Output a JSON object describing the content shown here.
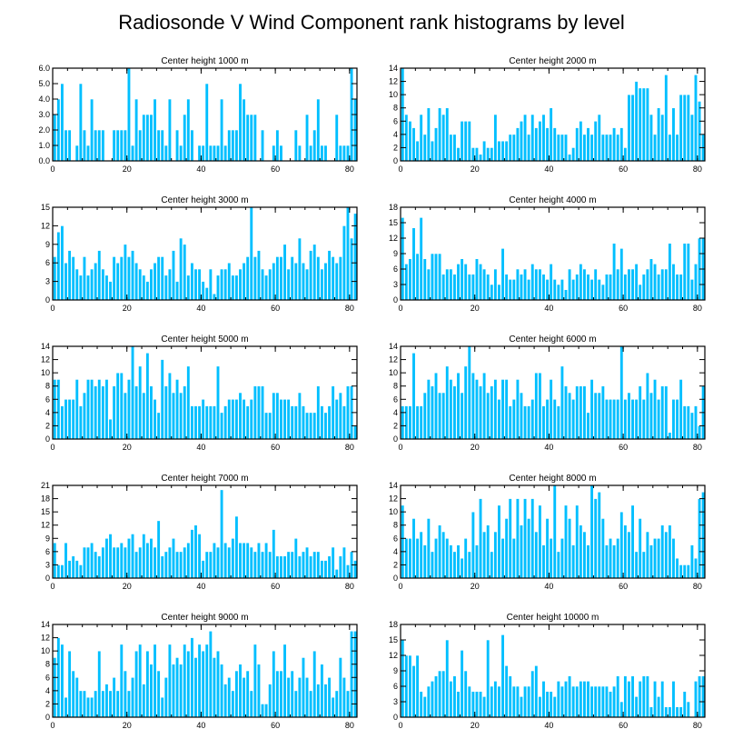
{
  "title": "Radiosonde V Wind Component rank histograms by level",
  "colors": {
    "bar": "#00bfff",
    "axis": "#000000"
  },
  "chart_data": [
    {
      "type": "bar",
      "title": "Center height 1000 m",
      "xlim": [
        0,
        82
      ],
      "ylim": [
        0,
        6
      ],
      "xticks": [
        0,
        20,
        40,
        60,
        80
      ],
      "yticks": [
        0,
        1,
        2,
        3,
        4,
        5,
        6
      ],
      "ytick_labels": [
        "0.0",
        "1.0",
        "2.0",
        "3.0",
        "4.0",
        "5.0",
        "6.0"
      ],
      "values": [
        3,
        4,
        5,
        2,
        2,
        0,
        1,
        5,
        2,
        1,
        4,
        2,
        2,
        2,
        0,
        0,
        2,
        2,
        2,
        2,
        6,
        1,
        4,
        2,
        3,
        3,
        3,
        4,
        2,
        2,
        1,
        4,
        0,
        2,
        1,
        3,
        4,
        2,
        0,
        1,
        1,
        5,
        1,
        1,
        1,
        4,
        1,
        2,
        2,
        2,
        5,
        4,
        3,
        3,
        3,
        0,
        2,
        0,
        0,
        1,
        2,
        1,
        0,
        0,
        0,
        2,
        1,
        0,
        3,
        1,
        2,
        4,
        1,
        1,
        0,
        0,
        3,
        1,
        1,
        1,
        6,
        4
      ]
    },
    {
      "type": "bar",
      "title": "Center height 2000 m",
      "xlim": [
        0,
        82
      ],
      "ylim": [
        0,
        14
      ],
      "xticks": [
        0,
        20,
        40,
        60,
        80
      ],
      "yticks": [
        0,
        2,
        4,
        6,
        8,
        10,
        12,
        14
      ],
      "ytick_labels": [
        "0",
        "2",
        "4",
        "6",
        "8",
        "10",
        "12",
        "14"
      ],
      "values": [
        14,
        7,
        6,
        5,
        3,
        7,
        4,
        8,
        3,
        5,
        8,
        7,
        8,
        4,
        4,
        2,
        6,
        6,
        6,
        2,
        2,
        1,
        3,
        2,
        2,
        7,
        3,
        3,
        3,
        4,
        4,
        5,
        6,
        7,
        4,
        7,
        5,
        6,
        7,
        5,
        8,
        5,
        4,
        4,
        4,
        1,
        2,
        5,
        6,
        4,
        5,
        4,
        6,
        7,
        4,
        4,
        4,
        5,
        4,
        5,
        2,
        10,
        10,
        12,
        11,
        11,
        11,
        7,
        4,
        8,
        7,
        13,
        4,
        8,
        4,
        10,
        10,
        10,
        7,
        13,
        9,
        4
      ]
    },
    {
      "type": "bar",
      "title": "Center height 3000 m",
      "xlim": [
        0,
        82
      ],
      "ylim": [
        0,
        15
      ],
      "xticks": [
        0,
        20,
        40,
        60,
        80
      ],
      "yticks": [
        0,
        3,
        6,
        9,
        12,
        15
      ],
      "ytick_labels": [
        "0",
        "3",
        "6",
        "9",
        "12",
        "15"
      ],
      "values": [
        7,
        11,
        12,
        6,
        8,
        7,
        5,
        4,
        7,
        4,
        5,
        6,
        8,
        5,
        4,
        3,
        7,
        6,
        7,
        9,
        7,
        8,
        6,
        5,
        4,
        3,
        5,
        6,
        7,
        7,
        4,
        5,
        8,
        3,
        10,
        9,
        4,
        6,
        5,
        5,
        3,
        2,
        5,
        1,
        4,
        5,
        5,
        6,
        4,
        4,
        5,
        6,
        7,
        15,
        7,
        8,
        5,
        4,
        5,
        6,
        7,
        7,
        9,
        5,
        7,
        6,
        10,
        6,
        5,
        8,
        9,
        7,
        5,
        6,
        8,
        7,
        6,
        7,
        12,
        15,
        10,
        14
      ]
    },
    {
      "type": "bar",
      "title": "Center height 4000 m",
      "xlim": [
        0,
        82
      ],
      "ylim": [
        0,
        18
      ],
      "xticks": [
        0,
        20,
        40,
        60,
        80
      ],
      "yticks": [
        0,
        3,
        6,
        9,
        12,
        15,
        18
      ],
      "ytick_labels": [
        "0",
        "3",
        "6",
        "9",
        "12",
        "15",
        "18"
      ],
      "values": [
        16,
        7,
        8,
        14,
        9,
        16,
        8,
        6,
        9,
        9,
        9,
        5,
        6,
        6,
        5,
        7,
        8,
        7,
        5,
        5,
        8,
        7,
        6,
        5,
        3,
        6,
        3,
        10,
        5,
        4,
        4,
        6,
        5,
        6,
        4,
        7,
        6,
        6,
        5,
        4,
        7,
        4,
        3,
        4,
        2,
        6,
        4,
        5,
        7,
        6,
        5,
        4,
        6,
        4,
        3,
        5,
        5,
        11,
        6,
        10,
        5,
        6,
        6,
        7,
        3,
        5,
        6,
        8,
        7,
        5,
        6,
        6,
        11,
        7,
        5,
        5,
        11,
        11,
        4,
        7,
        12,
        12
      ]
    },
    {
      "type": "bar",
      "title": "Center height 5000 m",
      "xlim": [
        0,
        82
      ],
      "ylim": [
        0,
        14
      ],
      "xticks": [
        0,
        20,
        40,
        60,
        80
      ],
      "yticks": [
        0,
        2,
        4,
        6,
        8,
        10,
        12,
        14
      ],
      "ytick_labels": [
        "0",
        "2",
        "4",
        "6",
        "8",
        "10",
        "12",
        "14"
      ],
      "values": [
        9,
        9,
        5,
        6,
        6,
        6,
        9,
        5,
        7,
        9,
        9,
        8,
        9,
        8,
        9,
        3,
        8,
        10,
        10,
        7,
        9,
        14,
        8,
        11,
        7,
        13,
        8,
        6,
        4,
        12,
        8,
        10,
        7,
        9,
        7,
        8,
        11,
        5,
        5,
        5,
        6,
        5,
        5,
        5,
        11,
        4,
        5,
        6,
        6,
        6,
        7,
        6,
        5,
        6,
        8,
        8,
        8,
        4,
        4,
        7,
        7,
        6,
        6,
        6,
        5,
        5,
        7,
        5,
        4,
        4,
        4,
        8,
        5,
        4,
        5,
        8,
        6,
        7,
        5,
        8,
        8,
        2
      ]
    },
    {
      "type": "bar",
      "title": "Center height 6000 m",
      "xlim": [
        0,
        82
      ],
      "ylim": [
        0,
        14
      ],
      "xticks": [
        0,
        20,
        40,
        60,
        80
      ],
      "yticks": [
        0,
        2,
        4,
        6,
        8,
        10,
        12,
        14
      ],
      "ytick_labels": [
        "0",
        "2",
        "4",
        "6",
        "8",
        "10",
        "12",
        "14"
      ],
      "values": [
        5,
        5,
        5,
        13,
        5,
        5,
        7,
        9,
        8,
        10,
        7,
        7,
        11,
        9,
        8,
        10,
        7,
        11,
        14,
        10,
        9,
        8,
        10,
        7,
        8,
        9,
        6,
        9,
        9,
        5,
        6,
        9,
        7,
        5,
        5,
        6,
        10,
        10,
        5,
        6,
        9,
        6,
        5,
        11,
        8,
        7,
        6,
        8,
        8,
        8,
        4,
        9,
        7,
        7,
        8,
        6,
        6,
        6,
        6,
        14,
        6,
        7,
        6,
        6,
        8,
        6,
        10,
        7,
        9,
        6,
        8,
        8,
        1,
        6,
        6,
        9,
        5,
        5,
        4,
        5,
        2,
        8
      ]
    },
    {
      "type": "bar",
      "title": "Center height 7000 m",
      "xlim": [
        0,
        82
      ],
      "ylim": [
        0,
        21
      ],
      "xticks": [
        0,
        20,
        40,
        60,
        80
      ],
      "yticks": [
        0,
        3,
        6,
        9,
        12,
        15,
        18,
        21
      ],
      "ytick_labels": [
        "0",
        "3",
        "6",
        "9",
        "12",
        "15",
        "18",
        "21"
      ],
      "values": [
        8,
        3,
        3,
        8,
        4,
        5,
        4,
        3,
        7,
        7,
        8,
        6,
        5,
        7,
        9,
        10,
        7,
        7,
        8,
        7,
        9,
        10,
        6,
        7,
        10,
        8,
        9,
        7,
        13,
        5,
        6,
        7,
        9,
        6,
        6,
        7,
        8,
        11,
        12,
        10,
        4,
        6,
        6,
        8,
        7,
        20,
        8,
        7,
        9,
        14,
        8,
        8,
        8,
        7,
        6,
        8,
        6,
        8,
        6,
        11,
        5,
        5,
        5,
        6,
        6,
        9,
        5,
        6,
        7,
        5,
        6,
        6,
        4,
        4,
        5,
        7,
        2,
        5,
        7,
        3,
        6,
        4
      ]
    },
    {
      "type": "bar",
      "title": "Center height 8000 m",
      "xlim": [
        0,
        82
      ],
      "ylim": [
        0,
        14
      ],
      "xticks": [
        0,
        20,
        40,
        60,
        80
      ],
      "yticks": [
        0,
        2,
        4,
        6,
        8,
        10,
        12,
        14
      ],
      "ytick_labels": [
        "0",
        "2",
        "4",
        "6",
        "8",
        "10",
        "12",
        "14"
      ],
      "values": [
        11,
        6,
        6,
        9,
        6,
        7,
        5,
        9,
        4,
        6,
        8,
        7,
        6,
        5,
        4,
        5,
        3,
        6,
        4,
        10,
        5,
        12,
        7,
        8,
        4,
        7,
        11,
        6,
        9,
        12,
        6,
        12,
        8,
        12,
        9,
        12,
        7,
        11,
        5,
        9,
        6,
        14,
        4,
        6,
        11,
        9,
        5,
        11,
        8,
        7,
        5,
        14,
        12,
        13,
        9,
        5,
        6,
        5,
        6,
        10,
        8,
        7,
        11,
        4,
        9,
        4,
        7,
        5,
        6,
        6,
        8,
        7,
        8,
        6,
        3,
        2,
        2,
        2,
        5,
        3,
        12,
        13
      ]
    },
    {
      "type": "bar",
      "title": "Center height 9000 m",
      "xlim": [
        0,
        82
      ],
      "ylim": [
        0,
        14
      ],
      "xticks": [
        0,
        20,
        40,
        60,
        80
      ],
      "yticks": [
        0,
        2,
        4,
        6,
        8,
        10,
        12,
        14
      ],
      "ytick_labels": [
        "0",
        "2",
        "4",
        "6",
        "8",
        "10",
        "12",
        "14"
      ],
      "values": [
        9,
        12,
        11,
        3,
        10,
        7,
        6,
        4,
        4,
        3,
        3,
        4,
        10,
        4,
        5,
        4,
        6,
        4,
        11,
        7,
        4,
        6,
        10,
        11,
        5,
        10,
        8,
        11,
        7,
        3,
        6,
        11,
        8,
        9,
        8,
        11,
        10,
        12,
        9,
        11,
        10,
        11,
        13,
        9,
        10,
        8,
        5,
        6,
        4,
        7,
        8,
        6,
        7,
        4,
        11,
        8,
        2,
        2,
        5,
        10,
        7,
        7,
        11,
        6,
        7,
        4,
        6,
        9,
        6,
        4,
        10,
        5,
        8,
        5,
        6,
        3,
        4,
        9,
        6,
        4,
        13,
        13
      ]
    },
    {
      "type": "bar",
      "title": "Center height 10000 m",
      "xlim": [
        0,
        82
      ],
      "ylim": [
        0,
        18
      ],
      "xticks": [
        0,
        20,
        40,
        60,
        80
      ],
      "yticks": [
        0,
        3,
        6,
        9,
        12,
        15,
        18
      ],
      "ytick_labels": [
        "0",
        "3",
        "6",
        "9",
        "12",
        "15",
        "18"
      ],
      "values": [
        15,
        12,
        12,
        10,
        12,
        5,
        4,
        6,
        7,
        8,
        9,
        9,
        15,
        7,
        8,
        5,
        13,
        9,
        6,
        5,
        5,
        5,
        4,
        15,
        6,
        7,
        6,
        16,
        10,
        8,
        6,
        6,
        4,
        6,
        6,
        9,
        10,
        4,
        7,
        5,
        5,
        4,
        7,
        6,
        7,
        8,
        6,
        6,
        7,
        7,
        7,
        6,
        6,
        6,
        6,
        6,
        5,
        6,
        8,
        3,
        8,
        7,
        8,
        4,
        7,
        8,
        8,
        2,
        7,
        4,
        7,
        2,
        2,
        7,
        2,
        2,
        5,
        3,
        0,
        7,
        8,
        8
      ]
    }
  ]
}
